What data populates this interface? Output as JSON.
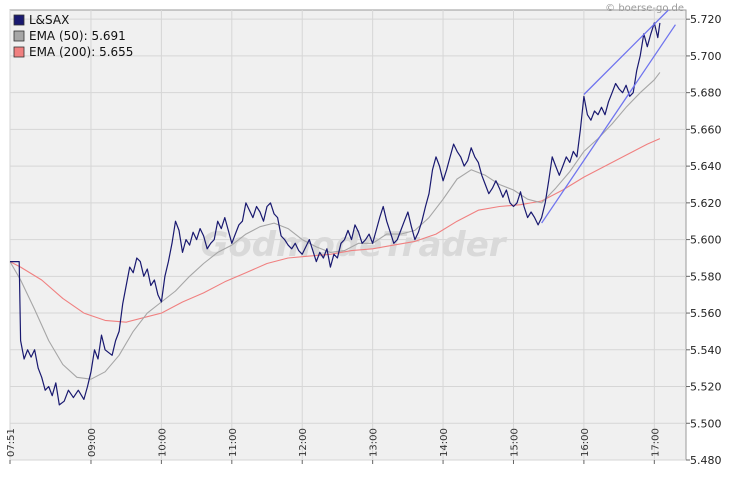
{
  "copyright": "© boerse-go.de",
  "watermark": "GodmodeTrader",
  "colors": {
    "price": "#191970",
    "ema50": "#a6a6a6",
    "ema200": "#f08080",
    "trend": "#6f74ee",
    "plot_bg": "#f0f0f0",
    "grid": "#d6d6d6"
  },
  "chart_data": {
    "type": "line",
    "title": "",
    "xlabel": "",
    "ylabel": "",
    "ylim": [
      5.48,
      5.725
    ],
    "xlim_hours": [
      7.85,
      17.45
    ],
    "y_ticks": [
      "5.720",
      "5.700",
      "5.680",
      "5.660",
      "5.640",
      "5.620",
      "5.600",
      "5.580",
      "5.560",
      "5.540",
      "5.520",
      "5.500",
      "5.480"
    ],
    "y_tick_values": [
      5.72,
      5.7,
      5.68,
      5.66,
      5.64,
      5.62,
      5.6,
      5.58,
      5.56,
      5.54,
      5.52,
      5.5,
      5.48
    ],
    "x_ticks": [
      {
        "label": "07:51",
        "hour": 7.85
      },
      {
        "label": "09:00",
        "hour": 9.0
      },
      {
        "label": "10:00",
        "hour": 10.0
      },
      {
        "label": "11:00",
        "hour": 11.0
      },
      {
        "label": "12:00",
        "hour": 12.0
      },
      {
        "label": "13:00",
        "hour": 13.0
      },
      {
        "label": "14:00",
        "hour": 14.0
      },
      {
        "label": "15:00",
        "hour": 15.0
      },
      {
        "label": "16:00",
        "hour": 16.0
      },
      {
        "label": "17:00",
        "hour": 17.0
      }
    ],
    "legend": [
      {
        "key": "price",
        "label": "L&SAX"
      },
      {
        "key": "ema50",
        "label": "EMA (50): 5.691"
      },
      {
        "key": "ema200",
        "label": "EMA (200): 5.655"
      }
    ],
    "series": [
      {
        "key": "price",
        "name": "L&SAX",
        "points": [
          [
            7.85,
            5.588
          ],
          [
            7.98,
            5.588
          ],
          [
            8.0,
            5.545
          ],
          [
            8.05,
            5.535
          ],
          [
            8.1,
            5.54
          ],
          [
            8.15,
            5.536
          ],
          [
            8.2,
            5.54
          ],
          [
            8.25,
            5.53
          ],
          [
            8.3,
            5.525
          ],
          [
            8.35,
            5.518
          ],
          [
            8.4,
            5.52
          ],
          [
            8.45,
            5.515
          ],
          [
            8.5,
            5.522
          ],
          [
            8.55,
            5.51
          ],
          [
            8.62,
            5.512
          ],
          [
            8.68,
            5.518
          ],
          [
            8.75,
            5.514
          ],
          [
            8.82,
            5.518
          ],
          [
            8.9,
            5.513
          ],
          [
            8.95,
            5.52
          ],
          [
            9.0,
            5.528
          ],
          [
            9.05,
            5.54
          ],
          [
            9.1,
            5.535
          ],
          [
            9.15,
            5.548
          ],
          [
            9.2,
            5.54
          ],
          [
            9.3,
            5.537
          ],
          [
            9.35,
            5.545
          ],
          [
            9.4,
            5.55
          ],
          [
            9.45,
            5.565
          ],
          [
            9.5,
            5.575
          ],
          [
            9.55,
            5.585
          ],
          [
            9.6,
            5.582
          ],
          [
            9.65,
            5.59
          ],
          [
            9.7,
            5.588
          ],
          [
            9.75,
            5.58
          ],
          [
            9.8,
            5.584
          ],
          [
            9.85,
            5.575
          ],
          [
            9.9,
            5.578
          ],
          [
            9.95,
            5.57
          ],
          [
            10.0,
            5.566
          ],
          [
            10.05,
            5.58
          ],
          [
            10.1,
            5.588
          ],
          [
            10.15,
            5.598
          ],
          [
            10.2,
            5.61
          ],
          [
            10.25,
            5.605
          ],
          [
            10.3,
            5.593
          ],
          [
            10.35,
            5.6
          ],
          [
            10.4,
            5.597
          ],
          [
            10.45,
            5.604
          ],
          [
            10.5,
            5.6
          ],
          [
            10.55,
            5.606
          ],
          [
            10.6,
            5.602
          ],
          [
            10.65,
            5.595
          ],
          [
            10.7,
            5.598
          ],
          [
            10.75,
            5.6
          ],
          [
            10.8,
            5.61
          ],
          [
            10.85,
            5.606
          ],
          [
            10.9,
            5.612
          ],
          [
            10.95,
            5.605
          ],
          [
            11.0,
            5.598
          ],
          [
            11.05,
            5.603
          ],
          [
            11.1,
            5.608
          ],
          [
            11.15,
            5.61
          ],
          [
            11.2,
            5.62
          ],
          [
            11.25,
            5.616
          ],
          [
            11.3,
            5.612
          ],
          [
            11.35,
            5.618
          ],
          [
            11.4,
            5.615
          ],
          [
            11.45,
            5.61
          ],
          [
            11.5,
            5.618
          ],
          [
            11.55,
            5.62
          ],
          [
            11.6,
            5.614
          ],
          [
            11.65,
            5.612
          ],
          [
            11.7,
            5.602
          ],
          [
            11.75,
            5.6
          ],
          [
            11.8,
            5.597
          ],
          [
            11.85,
            5.595
          ],
          [
            11.9,
            5.598
          ],
          [
            11.95,
            5.594
          ],
          [
            12.0,
            5.592
          ],
          [
            12.05,
            5.596
          ],
          [
            12.1,
            5.6
          ],
          [
            12.15,
            5.594
          ],
          [
            12.2,
            5.588
          ],
          [
            12.25,
            5.593
          ],
          [
            12.3,
            5.59
          ],
          [
            12.35,
            5.595
          ],
          [
            12.4,
            5.585
          ],
          [
            12.45,
            5.592
          ],
          [
            12.5,
            5.59
          ],
          [
            12.55,
            5.598
          ],
          [
            12.6,
            5.6
          ],
          [
            12.65,
            5.605
          ],
          [
            12.7,
            5.6
          ],
          [
            12.75,
            5.608
          ],
          [
            12.8,
            5.604
          ],
          [
            12.85,
            5.598
          ],
          [
            12.9,
            5.6
          ],
          [
            12.95,
            5.603
          ],
          [
            13.0,
            5.598
          ],
          [
            13.05,
            5.605
          ],
          [
            13.1,
            5.612
          ],
          [
            13.15,
            5.618
          ],
          [
            13.2,
            5.61
          ],
          [
            13.25,
            5.604
          ],
          [
            13.3,
            5.598
          ],
          [
            13.35,
            5.6
          ],
          [
            13.4,
            5.605
          ],
          [
            13.45,
            5.61
          ],
          [
            13.5,
            5.615
          ],
          [
            13.55,
            5.607
          ],
          [
            13.6,
            5.6
          ],
          [
            13.65,
            5.604
          ],
          [
            13.7,
            5.61
          ],
          [
            13.75,
            5.618
          ],
          [
            13.8,
            5.625
          ],
          [
            13.85,
            5.638
          ],
          [
            13.9,
            5.645
          ],
          [
            13.95,
            5.64
          ],
          [
            14.0,
            5.632
          ],
          [
            14.05,
            5.638
          ],
          [
            14.1,
            5.645
          ],
          [
            14.15,
            5.652
          ],
          [
            14.2,
            5.648
          ],
          [
            14.25,
            5.645
          ],
          [
            14.3,
            5.64
          ],
          [
            14.35,
            5.643
          ],
          [
            14.4,
            5.65
          ],
          [
            14.45,
            5.645
          ],
          [
            14.5,
            5.642
          ],
          [
            14.55,
            5.635
          ],
          [
            14.6,
            5.63
          ],
          [
            14.65,
            5.625
          ],
          [
            14.7,
            5.628
          ],
          [
            14.75,
            5.632
          ],
          [
            14.8,
            5.628
          ],
          [
            14.85,
            5.623
          ],
          [
            14.9,
            5.627
          ],
          [
            14.95,
            5.62
          ],
          [
            15.0,
            5.618
          ],
          [
            15.05,
            5.62
          ],
          [
            15.1,
            5.626
          ],
          [
            15.15,
            5.618
          ],
          [
            15.2,
            5.612
          ],
          [
            15.25,
            5.615
          ],
          [
            15.3,
            5.612
          ],
          [
            15.35,
            5.608
          ],
          [
            15.4,
            5.612
          ],
          [
            15.45,
            5.62
          ],
          [
            15.5,
            5.632
          ],
          [
            15.55,
            5.645
          ],
          [
            15.6,
            5.64
          ],
          [
            15.65,
            5.635
          ],
          [
            15.7,
            5.64
          ],
          [
            15.75,
            5.645
          ],
          [
            15.8,
            5.642
          ],
          [
            15.85,
            5.648
          ],
          [
            15.9,
            5.645
          ],
          [
            15.95,
            5.66
          ],
          [
            16.0,
            5.678
          ],
          [
            16.05,
            5.668
          ],
          [
            16.1,
            5.665
          ],
          [
            16.15,
            5.67
          ],
          [
            16.2,
            5.668
          ],
          [
            16.25,
            5.672
          ],
          [
            16.3,
            5.668
          ],
          [
            16.35,
            5.675
          ],
          [
            16.4,
            5.68
          ],
          [
            16.45,
            5.685
          ],
          [
            16.5,
            5.682
          ],
          [
            16.55,
            5.68
          ],
          [
            16.6,
            5.684
          ],
          [
            16.65,
            5.678
          ],
          [
            16.7,
            5.68
          ],
          [
            16.75,
            5.692
          ],
          [
            16.8,
            5.7
          ],
          [
            16.85,
            5.712
          ],
          [
            16.9,
            5.705
          ],
          [
            16.95,
            5.712
          ],
          [
            17.0,
            5.718
          ],
          [
            17.05,
            5.71
          ],
          [
            17.08,
            5.718
          ]
        ]
      },
      {
        "key": "ema50",
        "name": "EMA (50): 5.691",
        "points": [
          [
            7.85,
            5.588
          ],
          [
            8.0,
            5.578
          ],
          [
            8.2,
            5.562
          ],
          [
            8.4,
            5.545
          ],
          [
            8.6,
            5.532
          ],
          [
            8.8,
            5.525
          ],
          [
            9.0,
            5.524
          ],
          [
            9.2,
            5.528
          ],
          [
            9.4,
            5.537
          ],
          [
            9.6,
            5.55
          ],
          [
            9.8,
            5.56
          ],
          [
            10.0,
            5.566
          ],
          [
            10.2,
            5.572
          ],
          [
            10.4,
            5.58
          ],
          [
            10.6,
            5.587
          ],
          [
            10.8,
            5.593
          ],
          [
            11.0,
            5.597
          ],
          [
            11.2,
            5.603
          ],
          [
            11.4,
            5.607
          ],
          [
            11.6,
            5.609
          ],
          [
            11.8,
            5.606
          ],
          [
            12.0,
            5.6
          ],
          [
            12.2,
            5.596
          ],
          [
            12.4,
            5.593
          ],
          [
            12.6,
            5.594
          ],
          [
            12.8,
            5.598
          ],
          [
            13.0,
            5.598
          ],
          [
            13.2,
            5.603
          ],
          [
            13.4,
            5.603
          ],
          [
            13.6,
            5.605
          ],
          [
            13.8,
            5.612
          ],
          [
            14.0,
            5.622
          ],
          [
            14.2,
            5.633
          ],
          [
            14.4,
            5.638
          ],
          [
            14.6,
            5.635
          ],
          [
            14.8,
            5.63
          ],
          [
            15.0,
            5.627
          ],
          [
            15.2,
            5.622
          ],
          [
            15.4,
            5.62
          ],
          [
            15.6,
            5.628
          ],
          [
            15.8,
            5.637
          ],
          [
            16.0,
            5.648
          ],
          [
            16.2,
            5.655
          ],
          [
            16.4,
            5.663
          ],
          [
            16.6,
            5.672
          ],
          [
            16.8,
            5.68
          ],
          [
            17.0,
            5.687
          ],
          [
            17.08,
            5.691
          ]
        ]
      },
      {
        "key": "ema200",
        "name": "EMA (200): 5.655",
        "points": [
          [
            7.85,
            5.588
          ],
          [
            8.0,
            5.585
          ],
          [
            8.3,
            5.578
          ],
          [
            8.6,
            5.568
          ],
          [
            8.9,
            5.56
          ],
          [
            9.2,
            5.556
          ],
          [
            9.5,
            5.555
          ],
          [
            9.8,
            5.558
          ],
          [
            10.0,
            5.56
          ],
          [
            10.3,
            5.566
          ],
          [
            10.6,
            5.571
          ],
          [
            10.9,
            5.577
          ],
          [
            11.2,
            5.582
          ],
          [
            11.5,
            5.587
          ],
          [
            11.8,
            5.59
          ],
          [
            12.1,
            5.591
          ],
          [
            12.4,
            5.592
          ],
          [
            12.7,
            5.594
          ],
          [
            13.0,
            5.595
          ],
          [
            13.3,
            5.597
          ],
          [
            13.6,
            5.599
          ],
          [
            13.9,
            5.603
          ],
          [
            14.2,
            5.61
          ],
          [
            14.5,
            5.616
          ],
          [
            14.8,
            5.618
          ],
          [
            15.1,
            5.619
          ],
          [
            15.4,
            5.621
          ],
          [
            15.7,
            5.627
          ],
          [
            16.0,
            5.634
          ],
          [
            16.3,
            5.64
          ],
          [
            16.6,
            5.646
          ],
          [
            16.9,
            5.652
          ],
          [
            17.08,
            5.655
          ]
        ]
      }
    ],
    "trendlines": [
      {
        "from": [
          15.4,
          5.609
        ],
        "to": [
          17.3,
          5.717
        ]
      },
      {
        "from": [
          16.0,
          5.679
        ],
        "to": [
          17.2,
          5.725
        ]
      }
    ]
  }
}
